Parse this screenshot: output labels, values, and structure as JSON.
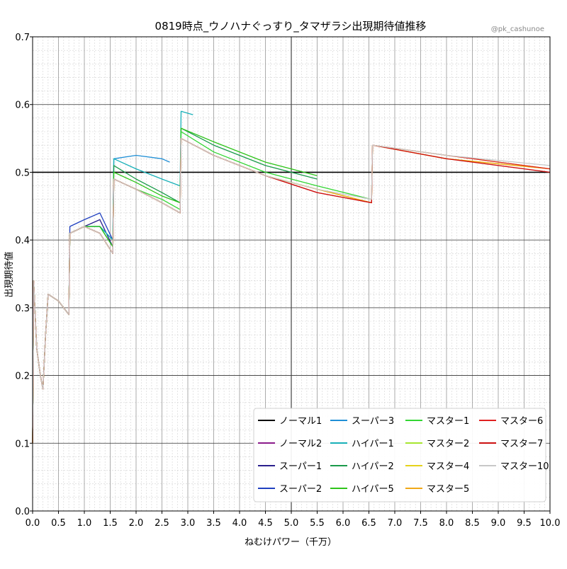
{
  "chart_data": {
    "type": "line",
    "title": "0819時点_ウノハナぐっすり_タマザラシ出現期待値推移",
    "credit": "@pk_cashunoe",
    "xlabel": "ねむけパワー（千万）",
    "ylabel": "出現期待値",
    "xlim": [
      0.0,
      10.0
    ],
    "ylim": [
      0.0,
      0.7
    ],
    "x_ticks": [
      "0.0",
      "0.5",
      "1.0",
      "1.5",
      "2.0",
      "2.5",
      "3.0",
      "3.5",
      "4.0",
      "4.5",
      "5.0",
      "5.5",
      "6.0",
      "6.5",
      "7.0",
      "7.5",
      "8.0",
      "8.5",
      "9.0",
      "9.5",
      "10.0"
    ],
    "y_ticks": [
      "0.0",
      "0.1",
      "0.2",
      "0.3",
      "0.4",
      "0.5",
      "0.6",
      "0.7"
    ],
    "grid": "major and minor",
    "reference_lines": {
      "y": 0.5,
      "x": 5.0
    },
    "legend_position": "bottom-right",
    "series": [
      {
        "name": "ノーマル1",
        "color": "#000000",
        "points": [
          [
            0.0,
            0.1
          ]
        ]
      },
      {
        "name": "ノーマル2",
        "color": "#8b1a8b",
        "points": [
          [
            0.0,
            0.1
          ]
        ]
      },
      {
        "name": "スーパー1",
        "color": "#2a1f8c",
        "points": [
          [
            0.0,
            0.1
          ],
          [
            0.02,
            0.34
          ],
          [
            0.08,
            0.24
          ],
          [
            0.15,
            0.2
          ],
          [
            0.2,
            0.18
          ],
          [
            0.25,
            0.26
          ],
          [
            0.3,
            0.32
          ],
          [
            0.5,
            0.31
          ],
          [
            0.7,
            0.29
          ],
          [
            0.72,
            0.41
          ],
          [
            1.0,
            0.42
          ],
          [
            1.3,
            0.43
          ],
          [
            1.55,
            0.39
          ]
        ]
      },
      {
        "name": "スーパー2",
        "color": "#2040c0",
        "points": [
          [
            0.0,
            0.1
          ],
          [
            0.02,
            0.34
          ],
          [
            0.08,
            0.24
          ],
          [
            0.15,
            0.2
          ],
          [
            0.2,
            0.18
          ],
          [
            0.25,
            0.26
          ],
          [
            0.3,
            0.32
          ],
          [
            0.5,
            0.31
          ],
          [
            0.7,
            0.29
          ],
          [
            0.72,
            0.42
          ],
          [
            1.0,
            0.43
          ],
          [
            1.3,
            0.44
          ],
          [
            1.55,
            0.4
          ]
        ]
      },
      {
        "name": "スーパー3",
        "color": "#1f8fd6",
        "points": [
          [
            0.0,
            0.1
          ],
          [
            0.02,
            0.34
          ],
          [
            0.08,
            0.24
          ],
          [
            0.15,
            0.2
          ],
          [
            0.2,
            0.18
          ],
          [
            0.25,
            0.26
          ],
          [
            0.3,
            0.32
          ],
          [
            0.5,
            0.31
          ],
          [
            0.7,
            0.29
          ],
          [
            0.72,
            0.41
          ],
          [
            1.0,
            0.42
          ],
          [
            1.3,
            0.42
          ],
          [
            1.55,
            0.4
          ],
          [
            1.57,
            0.52
          ],
          [
            2.0,
            0.525
          ],
          [
            2.5,
            0.52
          ],
          [
            2.65,
            0.515
          ]
        ]
      },
      {
        "name": "ハイパー1",
        "color": "#17b0b8",
        "points": [
          [
            0.0,
            0.1
          ],
          [
            0.02,
            0.34
          ],
          [
            0.08,
            0.24
          ],
          [
            0.15,
            0.2
          ],
          [
            0.2,
            0.18
          ],
          [
            0.25,
            0.26
          ],
          [
            0.3,
            0.32
          ],
          [
            0.5,
            0.31
          ],
          [
            0.7,
            0.29
          ],
          [
            0.72,
            0.41
          ],
          [
            1.0,
            0.42
          ],
          [
            1.3,
            0.42
          ],
          [
            1.55,
            0.4
          ],
          [
            1.57,
            0.52
          ],
          [
            2.0,
            0.505
          ],
          [
            2.5,
            0.49
          ],
          [
            2.85,
            0.48
          ],
          [
            2.87,
            0.59
          ],
          [
            3.1,
            0.585
          ]
        ]
      },
      {
        "name": "ハイパー2",
        "color": "#1a9a4a",
        "points": [
          [
            0.0,
            0.1
          ],
          [
            0.02,
            0.34
          ],
          [
            0.08,
            0.24
          ],
          [
            0.15,
            0.2
          ],
          [
            0.2,
            0.18
          ],
          [
            0.25,
            0.26
          ],
          [
            0.3,
            0.32
          ],
          [
            0.5,
            0.31
          ],
          [
            0.7,
            0.29
          ],
          [
            0.72,
            0.41
          ],
          [
            1.0,
            0.42
          ],
          [
            1.3,
            0.42
          ],
          [
            1.55,
            0.39
          ],
          [
            1.57,
            0.51
          ],
          [
            2.0,
            0.49
          ],
          [
            2.5,
            0.47
          ],
          [
            2.85,
            0.455
          ],
          [
            2.87,
            0.565
          ],
          [
            3.5,
            0.54
          ],
          [
            4.5,
            0.51
          ],
          [
            5.5,
            0.49
          ]
        ]
      },
      {
        "name": "ハイパー5",
        "color": "#2ec41a",
        "points": [
          [
            0.0,
            0.1
          ],
          [
            0.02,
            0.34
          ],
          [
            0.08,
            0.24
          ],
          [
            0.15,
            0.2
          ],
          [
            0.2,
            0.18
          ],
          [
            0.25,
            0.26
          ],
          [
            0.3,
            0.32
          ],
          [
            0.5,
            0.31
          ],
          [
            0.7,
            0.29
          ],
          [
            0.72,
            0.41
          ],
          [
            1.0,
            0.42
          ],
          [
            1.3,
            0.42
          ],
          [
            1.55,
            0.39
          ],
          [
            1.57,
            0.5
          ],
          [
            2.0,
            0.485
          ],
          [
            2.5,
            0.465
          ],
          [
            2.85,
            0.455
          ],
          [
            2.87,
            0.565
          ],
          [
            3.5,
            0.545
          ],
          [
            4.5,
            0.515
          ],
          [
            5.5,
            0.495
          ]
        ]
      },
      {
        "name": "マスター1",
        "color": "#33d633",
        "points": [
          [
            0.0,
            0.1
          ],
          [
            0.02,
            0.34
          ],
          [
            0.08,
            0.24
          ],
          [
            0.15,
            0.2
          ],
          [
            0.2,
            0.18
          ],
          [
            0.25,
            0.26
          ],
          [
            0.3,
            0.32
          ],
          [
            0.5,
            0.31
          ],
          [
            0.7,
            0.29
          ],
          [
            0.72,
            0.41
          ],
          [
            1.0,
            0.42
          ],
          [
            1.3,
            0.41
          ],
          [
            1.55,
            0.38
          ],
          [
            1.57,
            0.49
          ],
          [
            2.0,
            0.475
          ],
          [
            2.5,
            0.46
          ],
          [
            2.85,
            0.445
          ],
          [
            2.87,
            0.56
          ],
          [
            3.5,
            0.53
          ],
          [
            4.5,
            0.5
          ],
          [
            5.5,
            0.48
          ],
          [
            6.55,
            0.46
          ]
        ]
      },
      {
        "name": "マスター2",
        "color": "#a6e62e",
        "points": [
          [
            0.0,
            0.1
          ],
          [
            0.02,
            0.34
          ],
          [
            0.08,
            0.24
          ],
          [
            0.15,
            0.2
          ],
          [
            0.2,
            0.18
          ],
          [
            0.25,
            0.26
          ],
          [
            0.3,
            0.32
          ],
          [
            0.5,
            0.31
          ],
          [
            0.7,
            0.29
          ],
          [
            0.72,
            0.41
          ],
          [
            1.0,
            0.42
          ],
          [
            1.3,
            0.41
          ],
          [
            1.55,
            0.38
          ],
          [
            1.57,
            0.49
          ],
          [
            2.0,
            0.475
          ],
          [
            2.5,
            0.455
          ],
          [
            2.85,
            0.44
          ],
          [
            2.87,
            0.55
          ],
          [
            3.5,
            0.525
          ],
          [
            4.5,
            0.495
          ],
          [
            5.5,
            0.475
          ],
          [
            6.55,
            0.455
          ],
          [
            6.57,
            0.54
          ],
          [
            8.0,
            0.525
          ],
          [
            10.0,
            0.505
          ]
        ]
      },
      {
        "name": "マスター4",
        "color": "#e6d21a",
        "points": [
          [
            0.0,
            0.1
          ],
          [
            0.02,
            0.34
          ],
          [
            0.08,
            0.24
          ],
          [
            0.15,
            0.2
          ],
          [
            0.2,
            0.18
          ],
          [
            0.25,
            0.26
          ],
          [
            0.3,
            0.32
          ],
          [
            0.5,
            0.31
          ],
          [
            0.7,
            0.29
          ],
          [
            0.72,
            0.41
          ],
          [
            1.0,
            0.42
          ],
          [
            1.3,
            0.41
          ],
          [
            1.55,
            0.38
          ],
          [
            1.57,
            0.49
          ],
          [
            2.0,
            0.475
          ],
          [
            2.5,
            0.455
          ],
          [
            2.85,
            0.44
          ],
          [
            2.87,
            0.55
          ],
          [
            3.5,
            0.525
          ],
          [
            4.5,
            0.495
          ],
          [
            5.5,
            0.475
          ],
          [
            6.55,
            0.455
          ],
          [
            6.57,
            0.54
          ],
          [
            8.0,
            0.52
          ],
          [
            10.0,
            0.505
          ]
        ]
      },
      {
        "name": "マスター5",
        "color": "#f0a818",
        "points": [
          [
            0.0,
            0.1
          ],
          [
            0.02,
            0.34
          ],
          [
            0.08,
            0.24
          ],
          [
            0.15,
            0.2
          ],
          [
            0.2,
            0.18
          ],
          [
            0.25,
            0.26
          ],
          [
            0.3,
            0.32
          ],
          [
            0.5,
            0.31
          ],
          [
            0.7,
            0.29
          ],
          [
            0.72,
            0.41
          ],
          [
            1.0,
            0.42
          ],
          [
            1.3,
            0.41
          ],
          [
            1.55,
            0.38
          ],
          [
            1.57,
            0.49
          ],
          [
            2.0,
            0.475
          ],
          [
            2.5,
            0.455
          ],
          [
            2.85,
            0.44
          ],
          [
            2.87,
            0.55
          ],
          [
            3.5,
            0.525
          ],
          [
            4.5,
            0.495
          ],
          [
            5.5,
            0.475
          ],
          [
            6.55,
            0.455
          ],
          [
            6.57,
            0.54
          ],
          [
            8.0,
            0.52
          ],
          [
            10.0,
            0.505
          ]
        ]
      },
      {
        "name": "マスター6",
        "color": "#e02020",
        "points": [
          [
            0.0,
            0.1
          ],
          [
            0.02,
            0.34
          ],
          [
            0.08,
            0.24
          ],
          [
            0.15,
            0.2
          ],
          [
            0.2,
            0.18
          ],
          [
            0.25,
            0.26
          ],
          [
            0.3,
            0.32
          ],
          [
            0.5,
            0.31
          ],
          [
            0.7,
            0.29
          ],
          [
            0.72,
            0.41
          ],
          [
            1.0,
            0.42
          ],
          [
            1.3,
            0.41
          ],
          [
            1.55,
            0.38
          ],
          [
            1.57,
            0.49
          ],
          [
            2.0,
            0.475
          ],
          [
            2.5,
            0.455
          ],
          [
            2.85,
            0.44
          ],
          [
            2.87,
            0.55
          ],
          [
            3.5,
            0.525
          ],
          [
            4.5,
            0.495
          ],
          [
            5.5,
            0.47
          ],
          [
            6.55,
            0.455
          ],
          [
            6.57,
            0.54
          ],
          [
            8.0,
            0.525
          ],
          [
            10.0,
            0.505
          ]
        ]
      },
      {
        "name": "マスター7",
        "color": "#cc1010",
        "points": [
          [
            0.0,
            0.1
          ],
          [
            0.02,
            0.34
          ],
          [
            0.08,
            0.24
          ],
          [
            0.15,
            0.2
          ],
          [
            0.2,
            0.18
          ],
          [
            0.25,
            0.26
          ],
          [
            0.3,
            0.32
          ],
          [
            0.5,
            0.31
          ],
          [
            0.7,
            0.29
          ],
          [
            0.72,
            0.41
          ],
          [
            1.0,
            0.42
          ],
          [
            1.3,
            0.41
          ],
          [
            1.55,
            0.38
          ],
          [
            1.57,
            0.49
          ],
          [
            2.0,
            0.475
          ],
          [
            2.5,
            0.455
          ],
          [
            2.85,
            0.44
          ],
          [
            2.87,
            0.55
          ],
          [
            3.5,
            0.525
          ],
          [
            4.5,
            0.495
          ],
          [
            5.5,
            0.47
          ],
          [
            6.55,
            0.455
          ],
          [
            6.57,
            0.54
          ],
          [
            8.0,
            0.52
          ],
          [
            10.0,
            0.5
          ]
        ]
      },
      {
        "name": "マスター10",
        "color": "#c8c8c8",
        "points": [
          [
            0.0,
            0.1
          ],
          [
            0.02,
            0.34
          ],
          [
            0.08,
            0.24
          ],
          [
            0.15,
            0.2
          ],
          [
            0.2,
            0.18
          ],
          [
            0.25,
            0.26
          ],
          [
            0.3,
            0.32
          ],
          [
            0.5,
            0.31
          ],
          [
            0.7,
            0.29
          ],
          [
            0.72,
            0.41
          ],
          [
            1.0,
            0.42
          ],
          [
            1.3,
            0.41
          ],
          [
            1.55,
            0.38
          ],
          [
            1.57,
            0.49
          ],
          [
            2.0,
            0.475
          ],
          [
            2.5,
            0.455
          ],
          [
            2.85,
            0.44
          ],
          [
            2.87,
            0.55
          ],
          [
            3.5,
            0.525
          ],
          [
            4.5,
            0.495
          ],
          [
            5.5,
            0.475
          ],
          [
            6.55,
            0.46
          ],
          [
            6.57,
            0.54
          ],
          [
            8.0,
            0.525
          ],
          [
            10.0,
            0.51
          ]
        ]
      }
    ]
  }
}
